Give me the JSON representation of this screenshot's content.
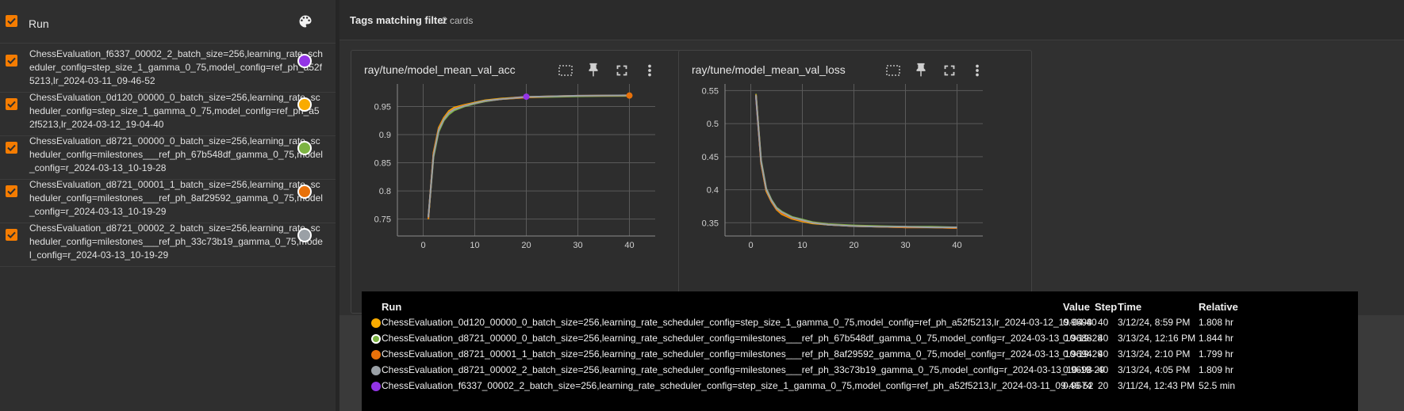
{
  "sidebar": {
    "header_label": "Run",
    "palette_icon": "palette-icon",
    "runs": [
      {
        "name": "ChessEvaluation_f6337_00002_2_batch_size=256,learning_rate_scheduler_config=step_size_1_gamma_0_75,model_config=ref_ph_a52f5213,lr_2024-03-11_09-46-52",
        "color": "#9334e6",
        "checked": true
      },
      {
        "name": "ChessEvaluation_0d120_00000_0_batch_size=256,learning_rate_scheduler_config=step_size_1_gamma_0_75,model_config=ref_ph_a52f5213,lr_2024-03-12_19-04-40",
        "color": "#f9ab00",
        "checked": true
      },
      {
        "name": "ChessEvaluation_d8721_00000_0_batch_size=256,learning_rate_scheduler_config=milestones___ref_ph_67b548df_gamma_0_75,model_config=r_2024-03-13_10-19-28",
        "color": "#7cb342",
        "checked": true
      },
      {
        "name": "ChessEvaluation_d8721_00001_1_batch_size=256,learning_rate_scheduler_config=milestones___ref_ph_8af29592_gamma_0_75,model_config=r_2024-03-13_10-19-29",
        "color": "#e8710a",
        "checked": true
      },
      {
        "name": "ChessEvaluation_d8721_00002_2_batch_size=256,learning_rate_scheduler_config=milestones___ref_ph_33c73b19_gamma_0_75,model_config=r_2024-03-13_10-19-29",
        "color": "#9aa0a6",
        "checked": true
      }
    ]
  },
  "main": {
    "tags_title": "Tags matching filter",
    "tags_count": "2 cards"
  },
  "cards": [
    {
      "title": "ray/tune/model_mean_val_acc",
      "icons": [
        "fit-domain-icon",
        "pin-icon",
        "fullscreen-icon",
        "more-vert-icon"
      ]
    },
    {
      "title": "ray/tune/model_mean_val_loss",
      "icons": [
        "fit-domain-icon",
        "pin-icon",
        "fullscreen-icon",
        "more-vert-icon"
      ]
    }
  ],
  "chart_data": [
    {
      "type": "line",
      "title": "ray/tune/model_mean_val_acc",
      "xlim": [
        -5,
        45
      ],
      "ylim": [
        0.72,
        0.99
      ],
      "x_ticks": [
        0,
        10,
        20,
        30,
        40
      ],
      "y_ticks": [
        0.75,
        0.8,
        0.85,
        0.9,
        0.95
      ],
      "grid": true,
      "series": [
        {
          "color": "#9334e6",
          "x": [
            1,
            2,
            3,
            4,
            5,
            6,
            8,
            10,
            12,
            15,
            18,
            20
          ],
          "y": [
            0.752,
            0.865,
            0.91,
            0.928,
            0.94,
            0.946,
            0.951,
            0.955,
            0.959,
            0.963,
            0.966,
            0.9674
          ]
        },
        {
          "color": "#f9ab00",
          "x": [
            1,
            2,
            3,
            4,
            5,
            6,
            8,
            10,
            12,
            15,
            20,
            25,
            30,
            35,
            40
          ],
          "y": [
            0.75,
            0.868,
            0.912,
            0.93,
            0.942,
            0.948,
            0.953,
            0.957,
            0.961,
            0.964,
            0.967,
            0.968,
            0.9688,
            0.9693,
            0.9698
          ]
        },
        {
          "color": "#7cb342",
          "x": [
            1,
            2,
            3,
            4,
            5,
            6,
            8,
            10,
            12,
            15,
            20,
            25,
            30,
            35,
            40
          ],
          "y": [
            0.752,
            0.86,
            0.905,
            0.925,
            0.936,
            0.943,
            0.95,
            0.955,
            0.959,
            0.963,
            0.966,
            0.967,
            0.968,
            0.9685,
            0.9688
          ]
        },
        {
          "color": "#e8710a",
          "x": [
            1,
            2,
            3,
            4,
            5,
            6,
            8,
            10,
            12,
            15,
            20,
            25,
            30,
            35,
            40
          ],
          "y": [
            0.751,
            0.866,
            0.91,
            0.928,
            0.94,
            0.946,
            0.952,
            0.956,
            0.96,
            0.963,
            0.966,
            0.968,
            0.969,
            0.9692,
            0.9694
          ]
        },
        {
          "color": "#9aa0a6",
          "x": [
            1,
            2,
            3,
            4,
            5,
            6,
            8,
            10,
            12,
            15,
            20,
            25,
            30,
            35,
            40
          ],
          "y": [
            0.753,
            0.863,
            0.908,
            0.927,
            0.939,
            0.945,
            0.951,
            0.956,
            0.96,
            0.963,
            0.967,
            0.968,
            0.969,
            0.9695,
            0.9698
          ]
        }
      ],
      "markers": [
        {
          "x": 20,
          "y": 0.9674,
          "color": "#9334e6"
        },
        {
          "x": 40,
          "y": 0.9694,
          "color": "#e8710a"
        }
      ]
    },
    {
      "type": "line",
      "title": "ray/tune/model_mean_val_loss",
      "xlim": [
        -5,
        45
      ],
      "ylim": [
        0.33,
        0.56
      ],
      "x_ticks": [
        0,
        10,
        20,
        30,
        40
      ],
      "y_ticks": [
        0.35,
        0.4,
        0.45,
        0.5,
        0.55
      ],
      "grid": true,
      "series": [
        {
          "color": "#9334e6",
          "x": [
            1,
            2,
            3,
            4,
            5,
            6,
            8,
            10,
            12,
            15,
            18,
            20
          ],
          "y": [
            0.54,
            0.44,
            0.398,
            0.382,
            0.37,
            0.364,
            0.357,
            0.353,
            0.35,
            0.347,
            0.346,
            0.345
          ]
        },
        {
          "color": "#f9ab00",
          "x": [
            1,
            2,
            3,
            4,
            5,
            6,
            8,
            10,
            12,
            15,
            20,
            25,
            30,
            35,
            40
          ],
          "y": [
            0.543,
            0.44,
            0.398,
            0.382,
            0.37,
            0.363,
            0.356,
            0.352,
            0.349,
            0.347,
            0.345,
            0.344,
            0.343,
            0.343,
            0.342
          ]
        },
        {
          "color": "#7cb342",
          "x": [
            1,
            2,
            3,
            4,
            5,
            6,
            8,
            10,
            12,
            15,
            20,
            25,
            30,
            35,
            40
          ],
          "y": [
            0.545,
            0.445,
            0.402,
            0.385,
            0.373,
            0.367,
            0.359,
            0.355,
            0.351,
            0.348,
            0.346,
            0.345,
            0.344,
            0.344,
            0.343
          ]
        },
        {
          "color": "#e8710a",
          "x": [
            1,
            2,
            3,
            4,
            5,
            6,
            8,
            10,
            12,
            15,
            20,
            25,
            30,
            35,
            40
          ],
          "y": [
            0.544,
            0.442,
            0.4,
            0.383,
            0.371,
            0.364,
            0.357,
            0.353,
            0.35,
            0.347,
            0.345,
            0.344,
            0.343,
            0.343,
            0.342
          ]
        },
        {
          "color": "#9aa0a6",
          "x": [
            1,
            2,
            3,
            4,
            5,
            6,
            8,
            10,
            12,
            15,
            20,
            25,
            30,
            35,
            40
          ],
          "y": [
            0.543,
            0.443,
            0.401,
            0.384,
            0.372,
            0.366,
            0.358,
            0.354,
            0.35,
            0.347,
            0.345,
            0.344,
            0.344,
            0.343,
            0.343
          ]
        }
      ]
    }
  ],
  "tooltip": {
    "headers": {
      "run": "Run",
      "value": "Value",
      "step": "Step",
      "time": "Time",
      "relative": "Relative"
    },
    "rows": [
      {
        "color": "#f9ab00",
        "run": "ChessEvaluation_0d120_00000_0_batch_size=256,learning_rate_scheduler_config=step_size_1_gamma_0_75,model_config=ref_ph_a52f5213,lr_2024-03-12_19-04-40",
        "value": "0.9698",
        "step": "40",
        "time": "3/12/24, 8:59 PM",
        "relative": "1.808 hr"
      },
      {
        "color": "#7cb342",
        "run": "ChessEvaluation_d8721_00000_0_batch_size=256,learning_rate_scheduler_config=milestones___ref_ph_67b548df_gamma_0_75,model_config=r_2024-03-13_10-19-28",
        "value": "0.9688",
        "step": "40",
        "time": "3/13/24, 12:16 PM",
        "relative": "1.844 hr"
      },
      {
        "color": "#e8710a",
        "run": "ChessEvaluation_d8721_00001_1_batch_size=256,learning_rate_scheduler_config=milestones___ref_ph_8af29592_gamma_0_75,model_config=r_2024-03-13_10-19-29",
        "value": "0.9694",
        "step": "40",
        "time": "3/13/24, 2:10 PM",
        "relative": "1.799 hr"
      },
      {
        "color": "#9aa0a6",
        "run": "ChessEvaluation_d8721_00002_2_batch_size=256,learning_rate_scheduler_config=milestones___ref_ph_33c73b19_gamma_0_75,model_config=r_2024-03-13_10-19-29",
        "value": "0.9698",
        "step": "40",
        "time": "3/13/24, 4:05 PM",
        "relative": "1.809 hr"
      },
      {
        "color": "#9334e6",
        "run": "ChessEvaluation_f6337_00002_2_batch_size=256,learning_rate_scheduler_config=step_size_1_gamma_0_75,model_config=ref_ph_a52f5213,lr_2024-03-11_09-46-52",
        "value": "0.9674",
        "step": "20",
        "time": "3/11/24, 12:43 PM",
        "relative": "52.5 min"
      }
    ]
  }
}
